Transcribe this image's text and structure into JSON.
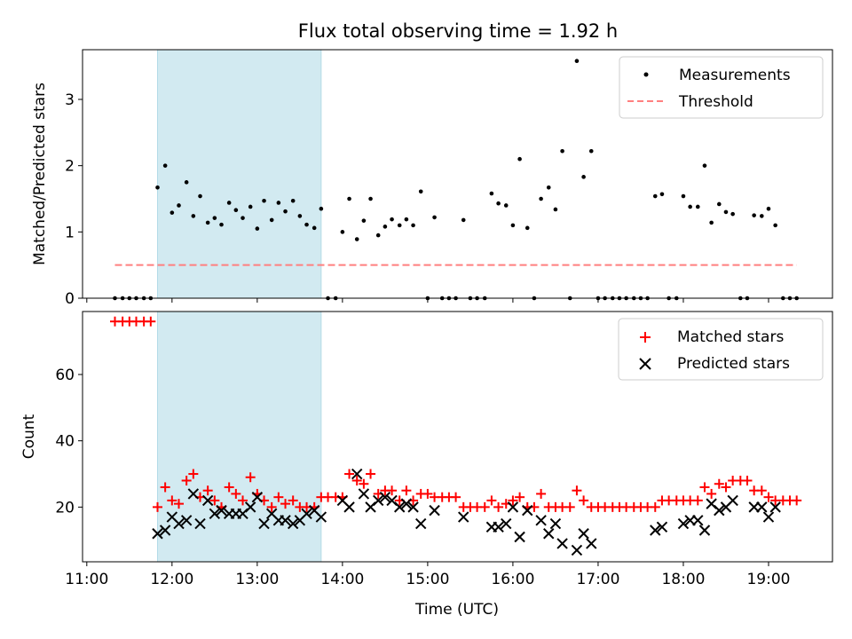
{
  "chart_data": [
    {
      "type": "scatter",
      "title": "Flux total observing time = 1.92 h",
      "xlabel": "",
      "ylabel": "Matched/Predicted stars",
      "xlim": [
        10.95,
        19.75
      ],
      "ylim": [
        0,
        3.75
      ],
      "yticks": [
        0,
        1,
        2,
        3
      ],
      "shaded_region": {
        "x": [
          11.83,
          13.75
        ],
        "color": "#add8e6"
      },
      "legend": {
        "position": "top-right",
        "entries": [
          "Measurements",
          "Threshold"
        ]
      },
      "series": [
        {
          "name": "Measurements",
          "marker": "dot",
          "color": "#000000",
          "points": [
            [
              11.33,
              0
            ],
            [
              11.42,
              0
            ],
            [
              11.5,
              0
            ],
            [
              11.58,
              0
            ],
            [
              11.67,
              0
            ],
            [
              11.75,
              0
            ],
            [
              11.83,
              1.67
            ],
            [
              11.92,
              2.0
            ],
            [
              12.0,
              1.29
            ],
            [
              12.08,
              1.4
            ],
            [
              12.17,
              1.75
            ],
            [
              12.25,
              1.24
            ],
            [
              12.33,
              1.54
            ],
            [
              12.42,
              1.14
            ],
            [
              12.5,
              1.21
            ],
            [
              12.58,
              1.11
            ],
            [
              12.67,
              1.44
            ],
            [
              12.75,
              1.33
            ],
            [
              12.83,
              1.21
            ],
            [
              12.92,
              1.38
            ],
            [
              13.0,
              1.05
            ],
            [
              13.08,
              1.47
            ],
            [
              13.17,
              1.18
            ],
            [
              13.25,
              1.44
            ],
            [
              13.33,
              1.31
            ],
            [
              13.42,
              1.47
            ],
            [
              13.5,
              1.24
            ],
            [
              13.58,
              1.11
            ],
            [
              13.67,
              1.06
            ],
            [
              13.75,
              1.35
            ],
            [
              13.83,
              0
            ],
            [
              13.92,
              0
            ],
            [
              14.0,
              1.0
            ],
            [
              14.08,
              1.5
            ],
            [
              14.17,
              0.89
            ],
            [
              14.25,
              1.17
            ],
            [
              14.33,
              1.5
            ],
            [
              14.42,
              0.95
            ],
            [
              14.5,
              1.08
            ],
            [
              14.58,
              1.19
            ],
            [
              14.67,
              1.1
            ],
            [
              14.75,
              1.19
            ],
            [
              14.83,
              1.1
            ],
            [
              14.92,
              1.61
            ],
            [
              15.0,
              0
            ],
            [
              15.08,
              1.22
            ],
            [
              15.17,
              0
            ],
            [
              15.25,
              0
            ],
            [
              15.33,
              0
            ],
            [
              15.42,
              1.18
            ],
            [
              15.5,
              0
            ],
            [
              15.58,
              0
            ],
            [
              15.67,
              0
            ],
            [
              15.75,
              1.58
            ],
            [
              15.83,
              1.43
            ],
            [
              15.92,
              1.4
            ],
            [
              16.0,
              1.1
            ],
            [
              16.08,
              2.1
            ],
            [
              16.17,
              1.06
            ],
            [
              16.25,
              0
            ],
            [
              16.33,
              1.5
            ],
            [
              16.42,
              1.67
            ],
            [
              16.5,
              1.34
            ],
            [
              16.58,
              2.22
            ],
            [
              16.67,
              0
            ],
            [
              16.75,
              3.58
            ],
            [
              16.83,
              1.83
            ],
            [
              16.92,
              2.22
            ],
            [
              17.0,
              0
            ],
            [
              17.08,
              0
            ],
            [
              17.17,
              0
            ],
            [
              17.25,
              0
            ],
            [
              17.33,
              0
            ],
            [
              17.42,
              0
            ],
            [
              17.5,
              0
            ],
            [
              17.58,
              0
            ],
            [
              17.67,
              1.54
            ],
            [
              17.75,
              1.57
            ],
            [
              17.83,
              0
            ],
            [
              17.92,
              0
            ],
            [
              18.0,
              1.54
            ],
            [
              18.08,
              1.38
            ],
            [
              18.17,
              1.38
            ],
            [
              18.25,
              2.0
            ],
            [
              18.33,
              1.14
            ],
            [
              18.42,
              1.42
            ],
            [
              18.5,
              1.3
            ],
            [
              18.58,
              1.27
            ],
            [
              18.67,
              0
            ],
            [
              18.75,
              0
            ],
            [
              18.83,
              1.25
            ],
            [
              18.92,
              1.24
            ],
            [
              19.0,
              1.35
            ],
            [
              19.08,
              1.1
            ],
            [
              19.17,
              0
            ],
            [
              19.25,
              0
            ],
            [
              19.33,
              0
            ]
          ]
        },
        {
          "name": "Threshold",
          "marker": "dashed-line",
          "color": "#ff7f7f",
          "points": [
            [
              11.33,
              0.5
            ],
            [
              19.33,
              0.5
            ]
          ]
        }
      ]
    },
    {
      "type": "scatter",
      "title": "",
      "xlabel": "Time (UTC)",
      "ylabel": "Count",
      "xlim": [
        10.95,
        19.75
      ],
      "ylim": [
        3.5,
        79
      ],
      "yticks": [
        20,
        40,
        60
      ],
      "xticks": [
        11,
        12,
        13,
        14,
        15,
        16,
        17,
        18,
        19
      ],
      "xticklabels": [
        "11:00",
        "12:00",
        "13:00",
        "14:00",
        "15:00",
        "16:00",
        "17:00",
        "18:00",
        "19:00"
      ],
      "shaded_region": {
        "x": [
          11.83,
          13.75
        ],
        "color": "#add8e6"
      },
      "legend": {
        "position": "top-right",
        "entries": [
          "Matched stars",
          "Predicted stars"
        ]
      },
      "series": [
        {
          "name": "Matched stars",
          "marker": "plus",
          "color": "#ff0000",
          "points": [
            [
              11.33,
              76
            ],
            [
              11.42,
              76
            ],
            [
              11.5,
              76
            ],
            [
              11.58,
              76
            ],
            [
              11.67,
              76
            ],
            [
              11.75,
              76
            ],
            [
              11.83,
              20
            ],
            [
              11.92,
              26
            ],
            [
              12.0,
              22
            ],
            [
              12.08,
              21
            ],
            [
              12.17,
              28
            ],
            [
              12.25,
              30
            ],
            [
              12.33,
              23
            ],
            [
              12.42,
              25
            ],
            [
              12.5,
              22
            ],
            [
              12.58,
              20
            ],
            [
              12.67,
              26
            ],
            [
              12.75,
              24
            ],
            [
              12.83,
              22
            ],
            [
              12.92,
              29
            ],
            [
              13.0,
              24
            ],
            [
              13.08,
              22
            ],
            [
              13.17,
              20
            ],
            [
              13.25,
              23
            ],
            [
              13.33,
              21
            ],
            [
              13.42,
              22
            ],
            [
              13.5,
              20
            ],
            [
              13.58,
              20
            ],
            [
              13.67,
              20
            ],
            [
              13.75,
              23
            ],
            [
              13.83,
              23
            ],
            [
              13.92,
              23
            ],
            [
              14.0,
              23
            ],
            [
              14.08,
              30
            ],
            [
              14.17,
              28
            ],
            [
              14.25,
              27
            ],
            [
              14.33,
              30
            ],
            [
              14.42,
              24
            ],
            [
              14.5,
              25
            ],
            [
              14.58,
              25
            ],
            [
              14.67,
              22
            ],
            [
              14.75,
              25
            ],
            [
              14.83,
              22
            ],
            [
              14.92,
              24
            ],
            [
              15.0,
              24
            ],
            [
              15.08,
              23
            ],
            [
              15.17,
              23
            ],
            [
              15.25,
              23
            ],
            [
              15.33,
              23
            ],
            [
              15.42,
              20
            ],
            [
              15.5,
              20
            ],
            [
              15.58,
              20
            ],
            [
              15.67,
              20
            ],
            [
              15.75,
              22
            ],
            [
              15.83,
              20
            ],
            [
              15.92,
              21
            ],
            [
              16.0,
              22
            ],
            [
              16.08,
              23
            ],
            [
              16.17,
              20
            ],
            [
              16.25,
              20
            ],
            [
              16.33,
              24
            ],
            [
              16.42,
              20
            ],
            [
              16.5,
              20
            ],
            [
              16.58,
              20
            ],
            [
              16.67,
              20
            ],
            [
              16.75,
              25
            ],
            [
              16.83,
              22
            ],
            [
              16.92,
              20
            ],
            [
              17.0,
              20
            ],
            [
              17.08,
              20
            ],
            [
              17.17,
              20
            ],
            [
              17.25,
              20
            ],
            [
              17.33,
              20
            ],
            [
              17.42,
              20
            ],
            [
              17.5,
              20
            ],
            [
              17.58,
              20
            ],
            [
              17.67,
              20
            ],
            [
              17.75,
              22
            ],
            [
              17.83,
              22
            ],
            [
              17.92,
              22
            ],
            [
              18.0,
              22
            ],
            [
              18.08,
              22
            ],
            [
              18.17,
              22
            ],
            [
              18.25,
              26
            ],
            [
              18.33,
              24
            ],
            [
              18.42,
              27
            ],
            [
              18.5,
              26
            ],
            [
              18.58,
              28
            ],
            [
              18.67,
              28
            ],
            [
              18.75,
              28
            ],
            [
              18.83,
              25
            ],
            [
              18.92,
              25
            ],
            [
              19.0,
              23
            ],
            [
              19.08,
              22
            ],
            [
              19.17,
              22
            ],
            [
              19.25,
              22
            ],
            [
              19.33,
              22
            ]
          ]
        },
        {
          "name": "Predicted stars",
          "marker": "x",
          "color": "#000000",
          "points": [
            [
              11.83,
              12
            ],
            [
              11.92,
              13
            ],
            [
              12.0,
              17
            ],
            [
              12.08,
              15
            ],
            [
              12.17,
              16
            ],
            [
              12.25,
              24
            ],
            [
              12.33,
              15
            ],
            [
              12.42,
              22
            ],
            [
              12.5,
              18
            ],
            [
              12.58,
              19
            ],
            [
              12.67,
              18
            ],
            [
              12.75,
              18
            ],
            [
              12.83,
              18
            ],
            [
              12.92,
              20
            ],
            [
              13.0,
              23
            ],
            [
              13.08,
              15
            ],
            [
              13.17,
              18
            ],
            [
              13.25,
              16
            ],
            [
              13.33,
              16
            ],
            [
              13.42,
              15
            ],
            [
              13.5,
              16
            ],
            [
              13.58,
              18
            ],
            [
              13.67,
              19
            ],
            [
              13.75,
              17
            ],
            [
              14.0,
              22
            ],
            [
              14.08,
              20
            ],
            [
              14.17,
              30
            ],
            [
              14.25,
              24
            ],
            [
              14.33,
              20
            ],
            [
              14.42,
              22
            ],
            [
              14.5,
              23
            ],
            [
              14.58,
              22
            ],
            [
              14.67,
              20
            ],
            [
              14.75,
              21
            ],
            [
              14.83,
              20
            ],
            [
              14.92,
              15
            ],
            [
              15.08,
              19
            ],
            [
              15.42,
              17
            ],
            [
              15.75,
              14
            ],
            [
              15.83,
              14
            ],
            [
              15.92,
              15
            ],
            [
              16.0,
              20
            ],
            [
              16.08,
              11
            ],
            [
              16.17,
              19
            ],
            [
              16.33,
              16
            ],
            [
              16.42,
              12
            ],
            [
              16.5,
              15
            ],
            [
              16.58,
              9
            ],
            [
              16.75,
              7
            ],
            [
              16.83,
              12
            ],
            [
              16.92,
              9
            ],
            [
              17.67,
              13
            ],
            [
              17.75,
              14
            ],
            [
              18.0,
              15
            ],
            [
              18.08,
              16
            ],
            [
              18.17,
              16
            ],
            [
              18.25,
              13
            ],
            [
              18.33,
              21
            ],
            [
              18.42,
              19
            ],
            [
              18.5,
              20
            ],
            [
              18.58,
              22
            ],
            [
              18.83,
              20
            ],
            [
              18.92,
              20
            ],
            [
              19.0,
              17
            ],
            [
              19.08,
              20
            ]
          ]
        }
      ]
    }
  ]
}
